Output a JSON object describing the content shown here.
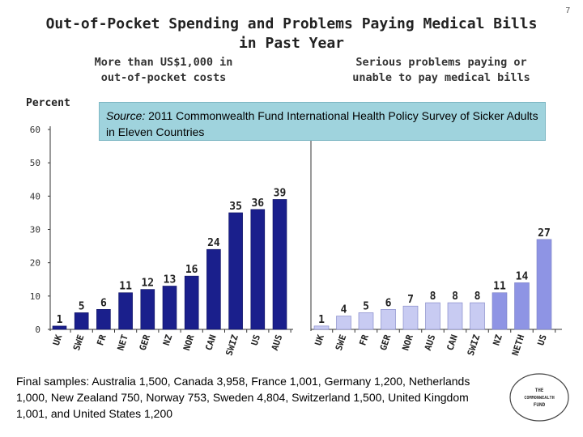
{
  "page_number": "7",
  "title_line1": "Out-of-Pocket Spending and Problems Paying Medical Bills",
  "title_line2": "in Past Year",
  "source_label": "Source:",
  "source_text": "2011 Commonwealth Fund International Health Policy Survey of Sicker Adults in Eleven Countries",
  "footnote": "Final samples: Australia 1,500, Canada 3,958, France 1,001, Germany 1,200, Netherlands 1,000, New Zealand 750, Norway 753, Sweden 4,804, Switzerland 1,500, United Kingdom 1,001, and United States 1,200",
  "logo_text": [
    "THE",
    "COMMONWEALTH",
    "FUND"
  ],
  "colors": {
    "bar_left": "#1a1f8c",
    "bar_right": "#c8cbf2",
    "bar_right_highlight": "#8e94e4"
  },
  "chart_data": [
    {
      "type": "bar",
      "title": "More than US$1,000 in out-of-pocket costs",
      "title_lines": [
        "More than US$1,000 in",
        "out-of-pocket costs"
      ],
      "ylabel": "Percent",
      "ylim": [
        0,
        60
      ],
      "yticks": [
        0,
        10,
        20,
        30,
        40,
        50,
        60
      ],
      "categories": [
        "UK",
        "SWE",
        "FR",
        "NET",
        "GER",
        "NZ",
        "NOR",
        "CAN",
        "SWIZ",
        "US",
        "AUS"
      ],
      "values": [
        1,
        5,
        6,
        11,
        12,
        13,
        16,
        24,
        35,
        36,
        39
      ]
    },
    {
      "type": "bar",
      "title": "Serious problems paying or unable to pay medical bills",
      "title_lines": [
        "Serious problems paying or",
        "unable to pay medical bills"
      ],
      "ylim": [
        0,
        60
      ],
      "categories": [
        "UK",
        "SWE",
        "FR",
        "GER",
        "NOR",
        "AUS",
        "CAN",
        "SWIZ",
        "NZ",
        "NETH",
        "US"
      ],
      "values": [
        1,
        4,
        5,
        6,
        7,
        8,
        8,
        8,
        11,
        14,
        27
      ],
      "highlighted": [
        "NZ",
        "NETH",
        "US"
      ]
    }
  ]
}
